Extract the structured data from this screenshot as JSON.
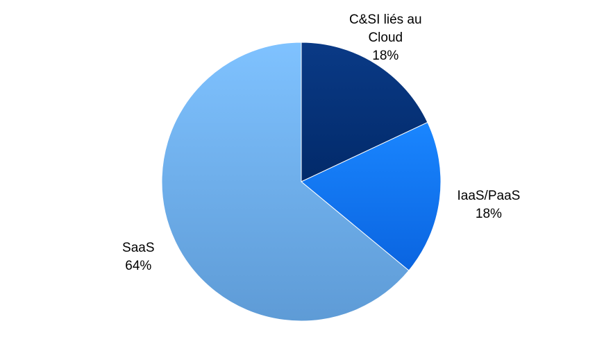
{
  "chart_data": {
    "type": "pie",
    "slices": [
      {
        "name": "C&SI liés au Cloud",
        "label_lines": [
          "C&SI liés au",
          "Cloud"
        ],
        "value": 18,
        "pct_label": "18%",
        "color": "#0a3a86",
        "color_dark": "#022a6a"
      },
      {
        "name": "IaaS/PaaS",
        "label_lines": [
          "IaaS/PaaS"
        ],
        "value": 18,
        "pct_label": "18%",
        "color": "#1a86ff",
        "color_dark": "#0a64e0"
      },
      {
        "name": "SaaS",
        "label_lines": [
          "SaaS"
        ],
        "value": 64,
        "pct_label": "64%",
        "color": "#7fc2ff",
        "color_dark": "#5e9bd6"
      }
    ],
    "start_angle_deg": 0,
    "direction": "clockwise",
    "legend": "none",
    "labels": "outside"
  }
}
